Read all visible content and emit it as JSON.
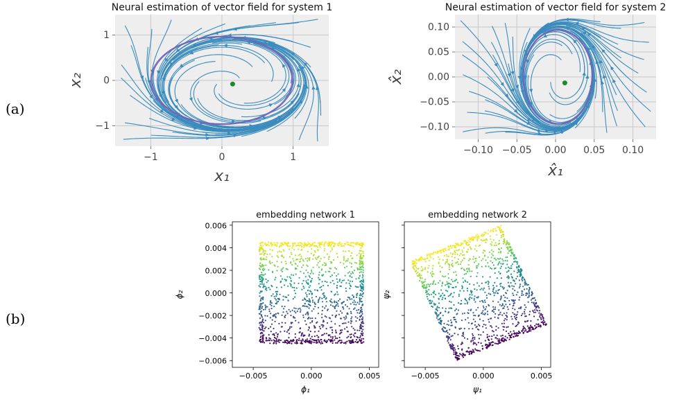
{
  "row_labels": {
    "a": "(a)",
    "b": "(b)"
  },
  "chart_data": [
    {
      "id": "vf1",
      "type": "streamplot",
      "title": "Neural estimation of vector field for system 1",
      "xlabel": "x₁",
      "ylabel": "x₂",
      "xlim": [
        -1.5,
        1.5
      ],
      "ylim": [
        -1.45,
        1.45
      ],
      "xticks": [
        -1,
        0,
        1
      ],
      "yticks": [
        -1,
        0,
        1
      ],
      "xtick_labels": [
        "−1",
        "0",
        "1"
      ],
      "ytick_labels": [
        "−1",
        "0",
        "1"
      ],
      "grid": true,
      "background": "#eeeeee",
      "stream_color": "#3a8bbd",
      "orbit_color": "#7266b8",
      "point_color": "#1e8a2e",
      "field": {
        "center": [
          0.15,
          -0.08
        ],
        "rotation": 1.0,
        "limit_radius_x": 1.0,
        "limit_radius_y": 0.97
      },
      "equilibrium": [
        0.15,
        -0.08
      ],
      "limit_cycle": {
        "center": [
          0.0,
          0.0
        ],
        "rx": 1.0,
        "ry": 0.97
      }
    },
    {
      "id": "vf2",
      "type": "streamplot",
      "title": "Neural estimation of vector field for system 2",
      "xlabel": "x̂₁",
      "ylabel": "x̂₂",
      "xlim": [
        -0.13,
        0.13
      ],
      "ylim": [
        -0.125,
        0.125
      ],
      "xticks": [
        -0.1,
        -0.05,
        0.0,
        0.05,
        0.1
      ],
      "yticks": [
        -0.1,
        -0.05,
        0.0,
        0.05,
        0.1
      ],
      "xtick_labels": [
        "−0.10",
        "−0.05",
        "0.00",
        "0.05",
        "0.10"
      ],
      "ytick_labels": [
        "−0.10",
        "−0.05",
        "0.00",
        "0.05",
        "0.10"
      ],
      "grid": true,
      "background": "#eeeeee",
      "stream_color": "#3a8bbd",
      "orbit_color": "#7266b8",
      "point_color": "#1e8a2e",
      "equilibrium": [
        0.012,
        -0.012
      ],
      "limit_cycle": {
        "center": [
          0.003,
          0.0
        ],
        "rx": 0.045,
        "ry": 0.095,
        "tilt_deg": -12
      }
    },
    {
      "id": "emb1",
      "type": "scatter",
      "title": "embedding network 1",
      "xlabel": "ϕ₁",
      "ylabel": "ϕ₂",
      "xlim": [
        -0.0068,
        0.0058
      ],
      "ylim": [
        -0.0066,
        0.0063
      ],
      "xticks": [
        -0.005,
        0.0,
        0.005
      ],
      "yticks": [
        -0.006,
        -0.004,
        -0.002,
        0.0,
        0.002,
        0.004,
        0.006
      ],
      "xtick_labels": [
        "−0.005",
        "0.000",
        "0.005"
      ],
      "ytick_labels": [
        "−0.006",
        "−0.004",
        "−0.002",
        "0.000",
        "0.002",
        "0.004",
        "0.006"
      ],
      "colormap": "viridis",
      "n_points": 1400,
      "region": {
        "corners": [
          [
            -0.0045,
            -0.0045
          ],
          [
            0.0045,
            -0.0045
          ],
          [
            0.0045,
            0.0045
          ],
          [
            -0.0045,
            0.0045
          ]
        ]
      },
      "color_by": "y"
    },
    {
      "id": "emb2",
      "type": "scatter",
      "title": "embedding network 2",
      "xlabel": "ψ₁",
      "ylabel": "ψ₂",
      "xlim": [
        -0.0068,
        0.0058
      ],
      "ylim": [
        -0.0066,
        0.0063
      ],
      "xticks": [
        -0.005,
        0.0,
        0.005
      ],
      "yticks": [
        -0.006,
        -0.004,
        -0.002,
        0.0,
        0.002,
        0.004,
        0.006
      ],
      "xtick_labels": [
        "−0.005",
        "0.000",
        "0.005"
      ],
      "ytick_labels": [],
      "colormap": "viridis",
      "n_points": 1400,
      "region": {
        "corners": [
          [
            -0.0023,
            -0.006
          ],
          [
            0.0055,
            -0.0028
          ],
          [
            0.0026,
            0.0054
          ],
          [
            -0.0063,
            0.0028
          ]
        ]
      },
      "color_by": "v"
    }
  ]
}
